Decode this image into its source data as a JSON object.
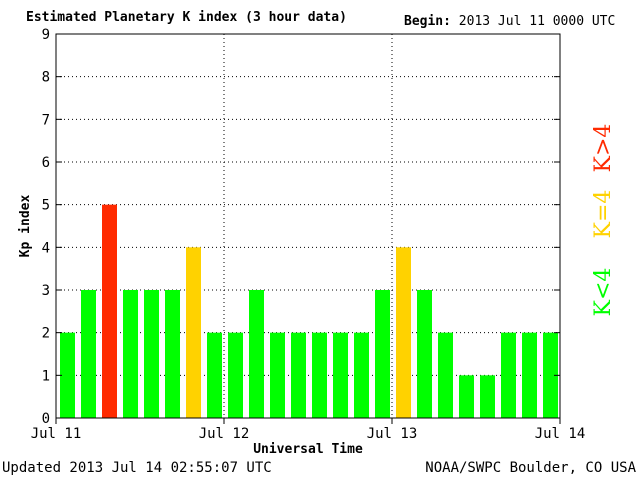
{
  "header": {
    "title": "Estimated Planetary K index (3 hour data)",
    "begin_label": "Begin:",
    "begin_value": "2013 Jul 11 0000 UTC"
  },
  "footer": {
    "updated": "Updated 2013 Jul 14 02:55:07 UTC",
    "source": "NOAA/SWPC Boulder, CO USA"
  },
  "legend": {
    "gt4": "K>4",
    "eq4": "K=4",
    "lt4": "K<4"
  },
  "colors": {
    "lt4": "#00ff00",
    "eq4": "#ffd200",
    "gt4": "#ff2a00"
  },
  "chart_data": {
    "type": "bar",
    "title": "Estimated Planetary K index (3 hour data)",
    "xlabel": "Universal Time",
    "ylabel": "Kp index",
    "ylim": [
      0,
      9
    ],
    "yticks": [
      "0",
      "1",
      "2",
      "3",
      "4",
      "5",
      "6",
      "7",
      "8",
      "9"
    ],
    "xticks": [
      "Jul 11",
      "Jul 12",
      "Jul 13",
      "Jul 14"
    ],
    "grid": true,
    "values": [
      2,
      3,
      5,
      3,
      3,
      3,
      4,
      2,
      2,
      3,
      2,
      2,
      2,
      2,
      2,
      3,
      4,
      3,
      2,
      1,
      1,
      2,
      2,
      2
    ]
  }
}
